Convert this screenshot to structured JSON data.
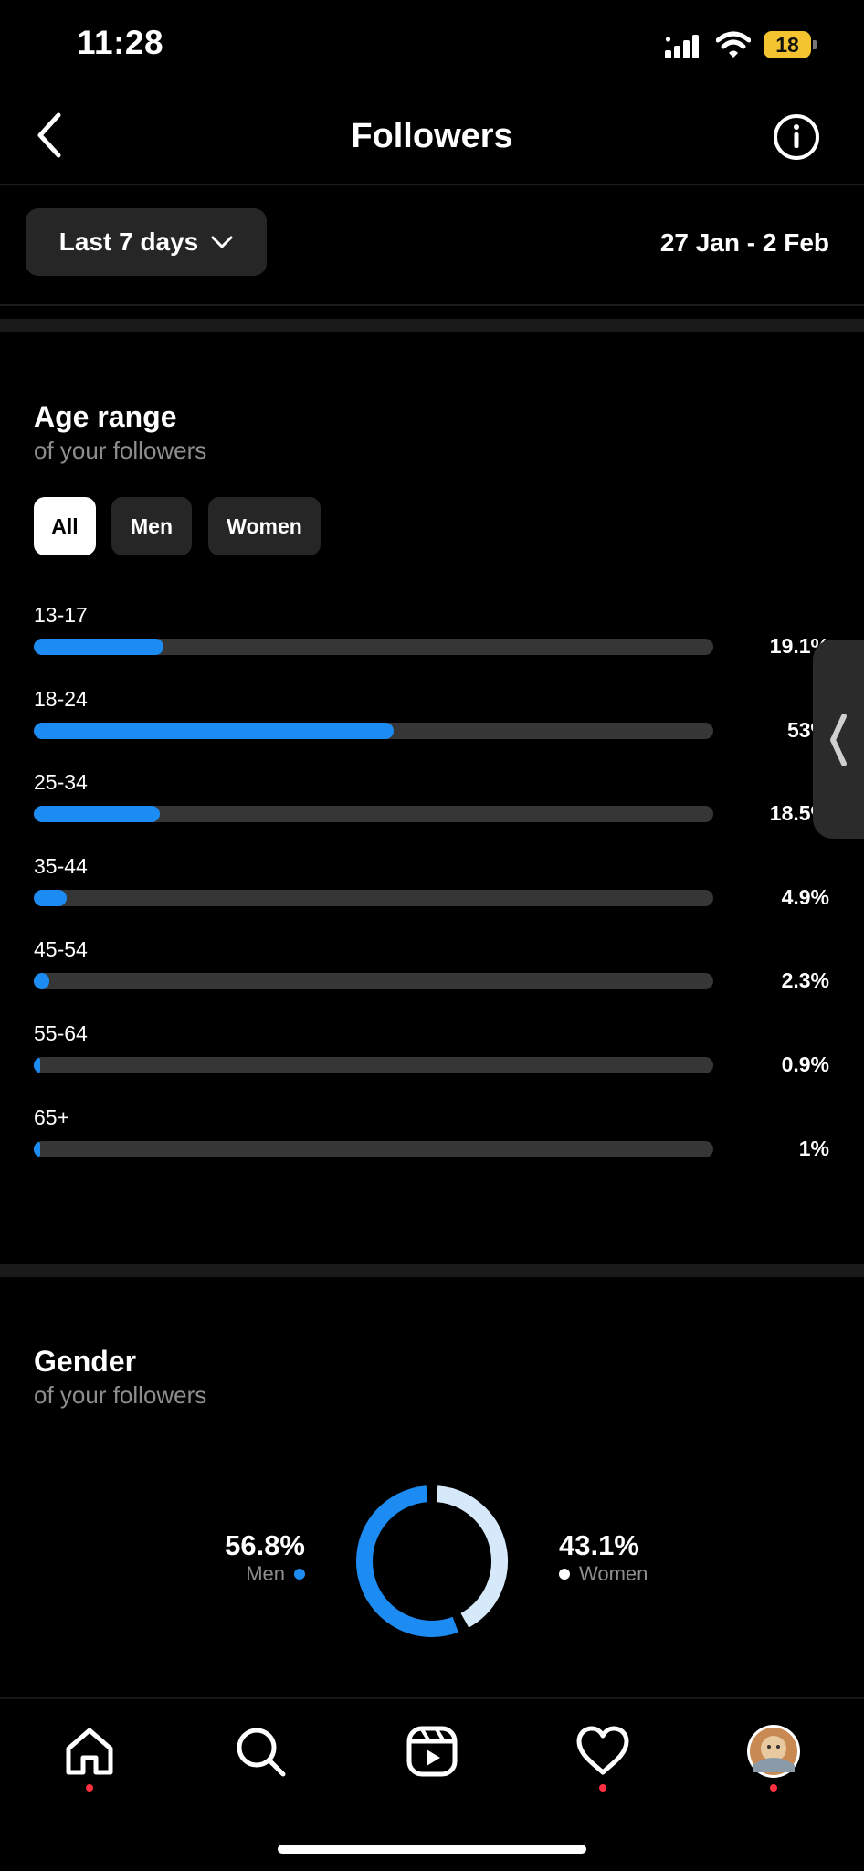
{
  "status_bar": {
    "time": "11:28",
    "battery": "18"
  },
  "header": {
    "title": "Followers"
  },
  "date_filter": {
    "label": "Last 7 days",
    "range": "27 Jan - 2 Feb"
  },
  "age_section": {
    "title": "Age range",
    "subtitle": "of your followers",
    "tabs": [
      {
        "label": "All",
        "selected": true
      },
      {
        "label": "Men",
        "selected": false
      },
      {
        "label": "Women",
        "selected": false
      }
    ],
    "rows": [
      {
        "label": "13-17",
        "percent": "19.1%",
        "value": 19.1
      },
      {
        "label": "18-24",
        "percent": "53%",
        "value": 53
      },
      {
        "label": "25-34",
        "percent": "18.5%",
        "value": 18.5
      },
      {
        "label": "35-44",
        "percent": "4.9%",
        "value": 4.9
      },
      {
        "label": "45-54",
        "percent": "2.3%",
        "value": 2.3
      },
      {
        "label": "55-64",
        "percent": "0.9%",
        "value": 0.9
      },
      {
        "label": "65+",
        "percent": "1%",
        "value": 1
      }
    ]
  },
  "gender_section": {
    "title": "Gender",
    "subtitle": "of your followers",
    "men": {
      "value": "56.8%",
      "label": "Men",
      "share": 56.8
    },
    "women": {
      "value": "43.1%",
      "label": "Women",
      "share": 43.1
    }
  },
  "nav": {
    "items": [
      {
        "name": "home",
        "notification": true
      },
      {
        "name": "search",
        "notification": false
      },
      {
        "name": "reels",
        "notification": false
      },
      {
        "name": "activity",
        "notification": true
      },
      {
        "name": "profile",
        "notification": true
      }
    ]
  },
  "colors": {
    "accent": "#1d8cf2",
    "women_segment": "#d6e9fb",
    "track": "#363636",
    "notification": "#ff3040"
  }
}
